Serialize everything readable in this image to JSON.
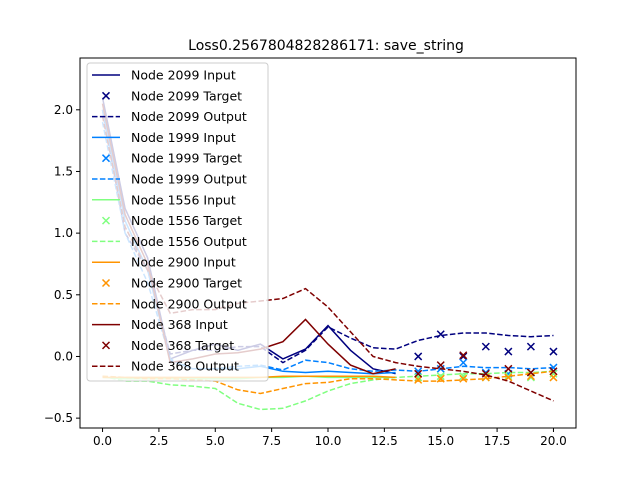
{
  "chart_data": {
    "type": "line",
    "title": "Loss0.2567804828286171: save_string",
    "xlabel": "",
    "ylabel": "",
    "xlim": [
      -1.0,
      21.0
    ],
    "ylim": [
      -0.58,
      2.42
    ],
    "x_ticks": [
      0.0,
      2.5,
      5.0,
      7.5,
      10.0,
      12.5,
      15.0,
      17.5,
      20.0
    ],
    "x_tick_labels": [
      "0.0",
      "2.5",
      "5.0",
      "7.5",
      "10.0",
      "12.5",
      "15.0",
      "17.5",
      "20.0"
    ],
    "y_ticks": [
      -0.5,
      0.0,
      0.5,
      1.0,
      1.5,
      2.0
    ],
    "y_tick_labels": [
      "−0.5",
      "0.0",
      "0.5",
      "1.0",
      "1.5",
      "2.0"
    ],
    "grid": false,
    "legend_position": "upper-left",
    "series": [
      {
        "node": "Node 2099",
        "color": "#00007f",
        "input_label": "Node 2099 Input",
        "target_label": "Node 2099 Target",
        "output_label": "Node 2099 Output",
        "input": {
          "x": [
            0,
            1,
            2,
            3,
            4,
            5,
            6,
            7,
            8,
            9,
            10,
            11,
            12,
            13
          ],
          "y": [
            2.1,
            1.2,
            0.8,
            -0.02,
            0.05,
            0.1,
            0.05,
            0.1,
            -0.02,
            0.06,
            0.25,
            0.05,
            -0.1,
            -0.14
          ]
        },
        "target": {
          "x": [
            14,
            15,
            16,
            17,
            18,
            19,
            20
          ],
          "y": [
            0.0,
            0.18,
            0.0,
            0.08,
            0.04,
            0.08,
            0.04
          ]
        },
        "output": {
          "x": [
            0,
            1,
            2,
            3,
            4,
            5,
            6,
            7,
            8,
            9,
            10,
            11,
            12,
            13,
            14,
            15,
            16,
            17,
            18,
            19,
            20
          ],
          "y": [
            2.0,
            1.0,
            0.7,
            0.02,
            0.05,
            0.05,
            0.08,
            0.08,
            -0.05,
            0.05,
            0.24,
            0.15,
            0.07,
            0.06,
            0.13,
            0.17,
            0.19,
            0.19,
            0.17,
            0.16,
            0.17
          ]
        }
      },
      {
        "node": "Node 1999",
        "color": "#0080ff",
        "input_label": "Node 1999 Input",
        "target_label": "Node 1999 Target",
        "output_label": "Node 1999 Output",
        "input": {
          "x": [
            0,
            1,
            2,
            3,
            4,
            5,
            6,
            7,
            8,
            9,
            10,
            11,
            12,
            13
          ],
          "y": [
            2.0,
            1.1,
            0.7,
            -0.03,
            -0.1,
            -0.1,
            -0.1,
            -0.08,
            -0.12,
            -0.13,
            -0.12,
            -0.13,
            -0.14,
            -0.13
          ]
        },
        "target": {
          "x": [
            14,
            15,
            16,
            17,
            18,
            19,
            20
          ],
          "y": [
            -0.12,
            -0.1,
            -0.05,
            -0.13,
            -0.14,
            -0.13,
            -0.09
          ]
        },
        "output": {
          "x": [
            0,
            1,
            2,
            3,
            4,
            5,
            6,
            7,
            8,
            9,
            10,
            11,
            12,
            13,
            14,
            15,
            16,
            17,
            18,
            19,
            20
          ],
          "y": [
            1.9,
            1.0,
            0.6,
            -0.02,
            -0.1,
            -0.1,
            -0.08,
            -0.07,
            -0.11,
            -0.03,
            -0.05,
            -0.1,
            -0.12,
            -0.11,
            -0.12,
            -0.1,
            -0.08,
            -0.09,
            -0.09,
            -0.1,
            -0.09
          ]
        }
      },
      {
        "node": "Node 1556",
        "color": "#80ff80",
        "input_label": "Node 1556 Input",
        "target_label": "Node 1556 Target",
        "output_label": "Node 1556 Output",
        "input": {
          "x": [
            0,
            1,
            2,
            3,
            4,
            5,
            6,
            7,
            8,
            9,
            10,
            11,
            12,
            13
          ],
          "y": [
            -0.17,
            -0.18,
            -0.18,
            -0.18,
            -0.18,
            -0.18,
            -0.18,
            -0.17,
            -0.17,
            -0.16,
            -0.17,
            -0.17,
            -0.17,
            -0.17
          ]
        },
        "target": {
          "x": [
            14,
            15,
            16,
            17,
            18,
            19,
            20
          ],
          "y": [
            -0.17,
            -0.16,
            -0.16,
            -0.17,
            -0.16,
            -0.17,
            -0.14
          ]
        },
        "output": {
          "x": [
            0,
            1,
            2,
            3,
            4,
            5,
            6,
            7,
            8,
            9,
            10,
            11,
            12,
            13,
            14,
            15,
            16,
            17,
            18,
            19,
            20
          ],
          "y": [
            -0.16,
            -0.2,
            -0.2,
            -0.23,
            -0.24,
            -0.26,
            -0.38,
            -0.43,
            -0.42,
            -0.36,
            -0.28,
            -0.22,
            -0.19,
            -0.17,
            -0.16,
            -0.15,
            -0.14,
            -0.14,
            -0.13,
            -0.13,
            -0.12
          ]
        }
      },
      {
        "node": "Node 2900",
        "color": "#ff9400",
        "input_label": "Node 2900 Input",
        "target_label": "Node 2900 Target",
        "output_label": "Node 2900 Output",
        "input": {
          "x": [
            0,
            1,
            2,
            3,
            4,
            5,
            6,
            7,
            8,
            9,
            10,
            11,
            12,
            13
          ],
          "y": [
            -0.17,
            -0.17,
            -0.17,
            -0.17,
            -0.17,
            -0.17,
            -0.17,
            -0.17,
            -0.16,
            -0.16,
            -0.16,
            -0.16,
            -0.16,
            -0.17
          ]
        },
        "target": {
          "x": [
            14,
            15,
            16,
            17,
            18,
            19,
            20
          ],
          "y": [
            -0.19,
            -0.18,
            -0.18,
            -0.17,
            -0.17,
            -0.16,
            -0.17
          ]
        },
        "output": {
          "x": [
            0,
            1,
            2,
            3,
            4,
            5,
            6,
            7,
            8,
            9,
            10,
            11,
            12,
            13,
            14,
            15,
            16,
            17,
            18,
            19,
            20
          ],
          "y": [
            -0.16,
            -0.17,
            -0.18,
            -0.18,
            -0.19,
            -0.2,
            -0.27,
            -0.3,
            -0.26,
            -0.22,
            -0.21,
            -0.18,
            -0.18,
            -0.19,
            -0.2,
            -0.2,
            -0.19,
            -0.18,
            -0.16,
            -0.14,
            -0.12
          ]
        }
      },
      {
        "node": "Node 368",
        "color": "#7f0000",
        "input_label": "Node 368 Input",
        "target_label": "Node 368 Target",
        "output_label": "Node 368 Output",
        "input": {
          "x": [
            0,
            1,
            2,
            3,
            4,
            5,
            6,
            7,
            8,
            9,
            10,
            11,
            12,
            13
          ],
          "y": [
            2.05,
            1.15,
            0.75,
            -0.05,
            -0.02,
            0.02,
            0.03,
            0.06,
            0.12,
            0.3,
            0.1,
            -0.07,
            -0.14,
            -0.1
          ]
        },
        "target": {
          "x": [
            14,
            15,
            16,
            17,
            18,
            19,
            20
          ],
          "y": [
            -0.14,
            -0.07,
            0.01,
            -0.14,
            -0.1,
            -0.13,
            -0.12
          ]
        },
        "output": {
          "x": [
            0,
            1,
            2,
            3,
            4,
            5,
            6,
            7,
            8,
            9,
            10,
            11,
            12,
            13,
            14,
            15,
            16,
            17,
            18,
            19,
            20
          ],
          "y": [
            1.95,
            1.05,
            0.7,
            0.35,
            0.38,
            0.38,
            0.43,
            0.45,
            0.47,
            0.55,
            0.4,
            0.2,
            0.0,
            -0.05,
            -0.08,
            -0.1,
            -0.12,
            -0.15,
            -0.2,
            -0.28,
            -0.36
          ]
        }
      }
    ]
  }
}
